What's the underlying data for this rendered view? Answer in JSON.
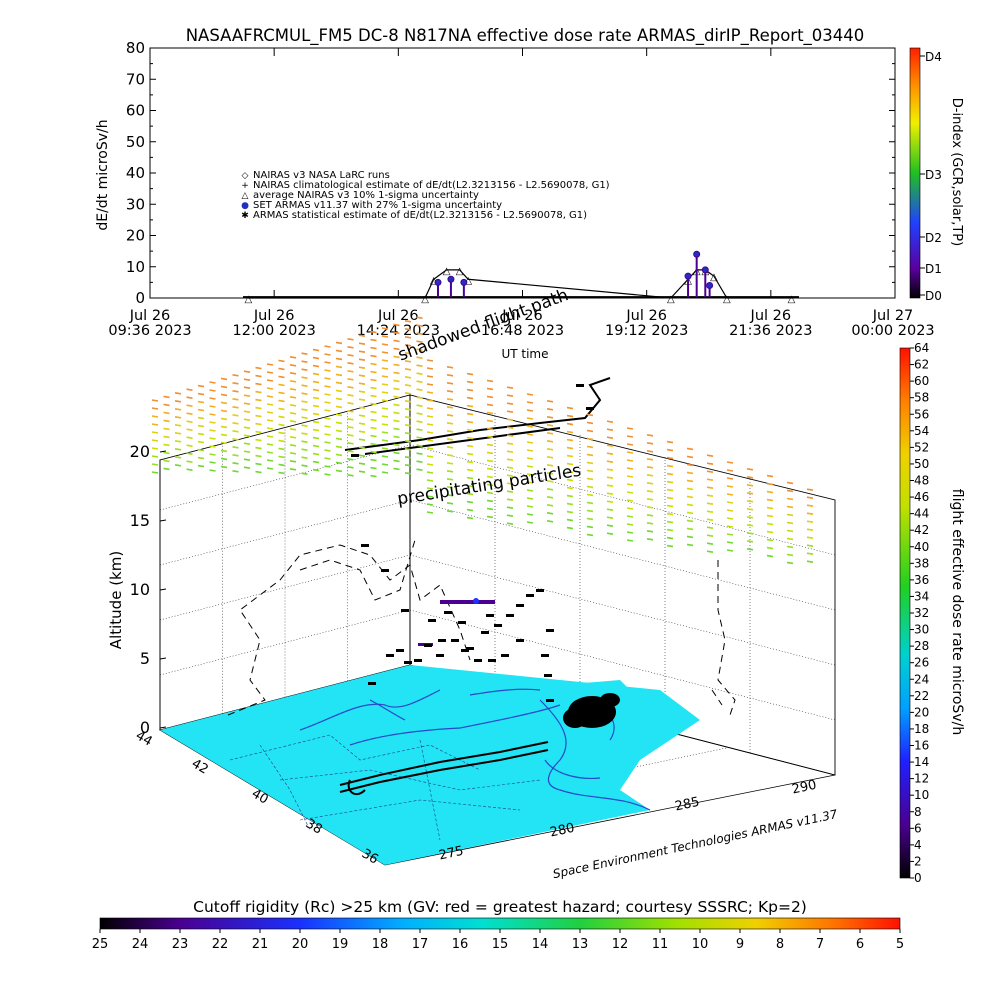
{
  "title": "NASAAFRCMUL_FM5 DC-8    N817NA effective dose rate ARMAS_dirIP_Report_03440",
  "top_panel": {
    "ylabel": "dE/dt microSv/h",
    "xlabel": "UT time",
    "yticks": [
      "0",
      "10",
      "20",
      "30",
      "40",
      "50",
      "60",
      "70",
      "80"
    ],
    "xticks": [
      {
        "line1": "Jul 26",
        "line2": "09:36 2023"
      },
      {
        "line1": "Jul 26",
        "line2": "12:00 2023"
      },
      {
        "line1": "Jul 26",
        "line2": "14:24 2023"
      },
      {
        "line1": "Jul 26",
        "line2": "16:48 2023"
      },
      {
        "line1": "Jul 26",
        "line2": "19:12 2023"
      },
      {
        "line1": "Jul 26",
        "line2": "21:36 2023"
      },
      {
        "line1": "Jul 27",
        "line2": "00:00 2023"
      }
    ],
    "legend": [
      {
        "sym": "◇",
        "text": "NAIRAS v3 NASA LaRC runs"
      },
      {
        "sym": "+",
        "text": "NAIRAS climatological estimate of dE/dt(L2.3213156 - L2.5690078, G1)"
      },
      {
        "sym": "△",
        "text": "average NAIRAS v3 10% 1-sigma uncertainty"
      },
      {
        "sym": "●",
        "text": "SET ARMAS v11.37 with 27% 1-sigma uncertainty"
      },
      {
        "sym": "✱",
        "text": "ARMAS statistical estimate of dE/dt(L2.3213156 - L2.5690078, G1)"
      }
    ],
    "dindex_label": "D-index (GCR,solar,TP)",
    "dindex_ticks": [
      "D0",
      "D1",
      "D2",
      "D3",
      "D4"
    ]
  },
  "chart_data": [
    {
      "type": "line",
      "title": "NASAAFRCMUL_FM5 DC-8    N817NA effective dose rate ARMAS_dirIP_Report_03440",
      "xlabel": "UT time",
      "ylabel": "dE/dt microSv/h",
      "xlim": [
        "2023-07-26 09:36",
        "2023-07-27 00:00"
      ],
      "ylim": [
        0,
        80
      ],
      "series": [
        {
          "name": "NAIRAS climatological estimate of dE/dt(L2.3213156 - L2.5690078, G1)",
          "x": [
            "2023-07-26 11:30",
            "2023-07-26 14:55",
            "2023-07-26 15:05",
            "2023-07-26 15:20",
            "2023-07-26 15:35",
            "2023-07-26 15:45",
            "2023-07-26 19:40",
            "2023-07-26 20:00",
            "2023-07-26 20:10",
            "2023-07-26 20:20",
            "2023-07-26 20:30",
            "2023-07-26 20:45",
            "2023-07-26 22:00"
          ],
          "values": [
            0,
            0,
            6,
            9,
            9,
            6,
            0,
            6,
            9,
            9,
            7,
            0,
            0
          ]
        },
        {
          "name": "SET ARMAS v11.37 with 27% 1-sigma uncertainty",
          "x": [
            "2023-07-26 15:10",
            "2023-07-26 15:25",
            "2023-07-26 15:40",
            "2023-07-26 20:00",
            "2023-07-26 20:10",
            "2023-07-26 20:20",
            "2023-07-26 20:25"
          ],
          "values": [
            5,
            6,
            5,
            7,
            14,
            9,
            4
          ]
        }
      ]
    },
    {
      "type": "heatmap",
      "title": "Cutoff rigidity (Rc) >25 km (GV: red = greatest hazard; courtesy SSSRC; Kp=2)",
      "zlabel": "flight effective dose rate microSv/h",
      "zlim": [
        0,
        64
      ],
      "altitude_km": [
        0,
        5,
        10,
        15,
        20
      ],
      "latitude_ticks": [
        36,
        38,
        40,
        42,
        44
      ],
      "longitude_ticks": [
        275,
        280,
        285,
        290
      ]
    }
  ],
  "map3d": {
    "ylabel": "Altitude (km)",
    "alt_ticks": [
      "0",
      "5",
      "10",
      "15",
      "20"
    ],
    "lat_ticks": [
      "44",
      "42",
      "40",
      "38",
      "36"
    ],
    "lon_ticks": [
      "275",
      "280",
      "285",
      "290"
    ],
    "annotation_precip": "precipitating particles",
    "annotation_shadowed": "shadowed flight path",
    "credit": "Space Environment Technologies ARMAS v11.37"
  },
  "dose_colorbar": {
    "label": "flight effective dose rate microSv/h",
    "ticks": [
      "0",
      "2",
      "4",
      "6",
      "8",
      "10",
      "12",
      "14",
      "16",
      "18",
      "20",
      "22",
      "24",
      "26",
      "28",
      "30",
      "32",
      "34",
      "36",
      "38",
      "40",
      "42",
      "44",
      "46",
      "48",
      "50",
      "52",
      "54",
      "56",
      "58",
      "60",
      "62",
      "64"
    ]
  },
  "rigidity_colorbar": {
    "title": "Cutoff rigidity (Rc) >25 km (GV: red = greatest hazard; courtesy SSSRC; Kp=2)",
    "ticks": [
      "25",
      "24",
      "23",
      "22",
      "21",
      "20",
      "19",
      "18",
      "17",
      "16",
      "15",
      "14",
      "13",
      "12",
      "11",
      "10",
      "9",
      "8",
      "7",
      "6",
      "5"
    ]
  },
  "colors": {
    "ocean": "#22e4f4",
    "track": "#000000",
    "precip_high": "#f0a020",
    "precip_low": "#8ce030"
  }
}
